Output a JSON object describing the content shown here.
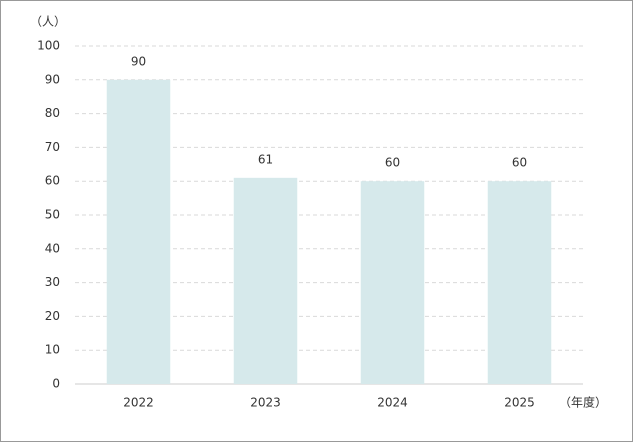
{
  "chart_data": {
    "type": "bar",
    "y_label": "（人）",
    "x_label": "（年度）",
    "categories": [
      "2022",
      "2023",
      "2024",
      "2025"
    ],
    "values": [
      90,
      61,
      60,
      60
    ],
    "color": "#d6e9eb",
    "ylim": [
      0,
      100
    ],
    "yticks": [
      0,
      10,
      20,
      30,
      40,
      50,
      60,
      70,
      80,
      90,
      100
    ],
    "grid": true
  }
}
